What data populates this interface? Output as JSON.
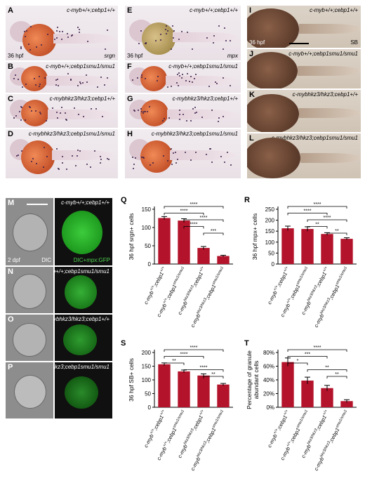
{
  "panels": {
    "A": {
      "letter": "A",
      "genotype": "c-myb+/+;cebp1+/+",
      "stage": "36 hpf",
      "stain": "srgn"
    },
    "B": {
      "letter": "B",
      "genotype": "c-myb+/+;cebp1smu1/smu1"
    },
    "C": {
      "letter": "C",
      "genotype": "c-mybhkz3/hkz3;cebp1+/+"
    },
    "D": {
      "letter": "D",
      "genotype": "c-mybhkz3/hkz3;cebp1smu1/smu1"
    },
    "E": {
      "letter": "E",
      "genotype": "c-myb+/+;cebp1+/+",
      "stage": "36 hpf",
      "stain": "mpx"
    },
    "F": {
      "letter": "F",
      "genotype": "c-myb+/+;cebp1smu1/smu1"
    },
    "G": {
      "letter": "G",
      "genotype": "c-mybhkz3/hkz3;cebp1+/+"
    },
    "H": {
      "letter": "H",
      "genotype": "c-mybhkz3/hkz3;cebp1smu1/smu1"
    },
    "I": {
      "letter": "I",
      "genotype": "c-myb+/+;cebp1+/+",
      "stage": "36 hpf",
      "stain": "SB"
    },
    "J": {
      "letter": "J",
      "genotype": "c-myb+/+;cebp1smu1/smu1"
    },
    "K": {
      "letter": "K",
      "genotype": "c-mybhkz3/hkz3;cebp1+/+"
    },
    "L": {
      "letter": "L",
      "genotype": "c-mybhkz3/hkz3;cebp1smu1/smu1"
    },
    "M": {
      "letter": "M",
      "genotype": "c-myb+/+;cebp1+/+",
      "stage": "2 dpf",
      "dic": "DIC",
      "overlay": "DIC+mpx:GFP"
    },
    "N": {
      "letter": "N",
      "genotype": "c-myb+/+;cebp1smu1/smu1"
    },
    "O": {
      "letter": "O",
      "genotype": "c-mybhkz3/hkz3;cebp1+/+"
    },
    "P": {
      "letter": "P",
      "genotype": "c-mybhkz3/hkz3;cebp1smu1/smu1"
    }
  },
  "chart_data": [
    {
      "letter": "Q",
      "type": "bar",
      "ylabel": "36 hpf srgn+ cells",
      "ylim": [
        0,
        150
      ],
      "ticks": [
        0,
        50,
        100,
        150
      ],
      "categories": [
        "c-myb+/+;cebp1+/+",
        "c-myb+/+;cebp1smu1/smu1",
        "c-mybhkz3/hkz3;cebp1+/+",
        "c-mybhkz3/hkz3;cebp1smu1/smu1"
      ],
      "values": [
        126,
        119,
        44,
        22
      ],
      "errors": [
        4,
        5,
        4,
        2
      ],
      "sig": [
        {
          "from": 0,
          "to": 3,
          "label": "****"
        },
        {
          "from": 0,
          "to": 2,
          "label": "****"
        },
        {
          "from": 1,
          "to": 3,
          "label": "****"
        },
        {
          "from": 1,
          "to": 2,
          "label": "****"
        },
        {
          "from": 2,
          "to": 3,
          "label": "***"
        }
      ]
    },
    {
      "letter": "R",
      "type": "bar",
      "ylabel": "36 hpf mpx+ cells",
      "ylim": [
        0,
        250
      ],
      "ticks": [
        0,
        50,
        100,
        150,
        200,
        250
      ],
      "categories": [
        "c-myb+/+;cebp1+/+",
        "c-myb+/+;cebp1smu1/smu1",
        "c-mybhkz3/hkz3;cebp1+/+",
        "c-mybhkz3/hkz3;cebp1smu1/smu1"
      ],
      "values": [
        163,
        160,
        137,
        115
      ],
      "errors": [
        10,
        10,
        6,
        5
      ],
      "sig": [
        {
          "from": 0,
          "to": 3,
          "label": "****"
        },
        {
          "from": 0,
          "to": 2,
          "label": "****"
        },
        {
          "from": 1,
          "to": 3,
          "label": "****"
        },
        {
          "from": 1,
          "to": 2,
          "label": "**"
        },
        {
          "from": 2,
          "to": 3,
          "label": "**"
        }
      ]
    },
    {
      "letter": "S",
      "type": "bar",
      "ylabel": "36 hpf SB+ cells",
      "ylim": [
        0,
        200
      ],
      "ticks": [
        0,
        50,
        100,
        150,
        200
      ],
      "categories": [
        "c-myb+/+;cebp1+/+",
        "c-myb+/+;cebp1smu1/smu1",
        "c-mybhkz3/hkz3;cebp1+/+",
        "c-mybhkz3/hkz3;cebp1smu1/smu1"
      ],
      "values": [
        157,
        131,
        116,
        83
      ],
      "errors": [
        5,
        5,
        6,
        4
      ],
      "sig": [
        {
          "from": 0,
          "to": 3,
          "label": "****"
        },
        {
          "from": 0,
          "to": 2,
          "label": "****"
        },
        {
          "from": 0,
          "to": 1,
          "label": "**"
        },
        {
          "from": 1,
          "to": 3,
          "label": "****"
        },
        {
          "from": 2,
          "to": 3,
          "label": "**"
        }
      ]
    },
    {
      "letter": "T",
      "type": "bar",
      "ylabel": "Percentage of granule abundant cells",
      "ylim": [
        0,
        80
      ],
      "ticks": [
        "0%",
        "20%",
        "40%",
        "60%",
        "80%"
      ],
      "categories": [
        "c-myb+/+;cebp1+/+",
        "c-myb+/+;cebp1smu1/smu1",
        "c-mybhkz3/hkz3;cebp1+/+",
        "c-mybhkz3/hkz3;cebp1smu1/smu1"
      ],
      "values": [
        66,
        39,
        28,
        9
      ],
      "errors": [
        6,
        5,
        4,
        2
      ],
      "sig": [
        {
          "from": 0,
          "to": 3,
          "label": "****"
        },
        {
          "from": 0,
          "to": 2,
          "label": "***"
        },
        {
          "from": 0,
          "to": 1,
          "label": "*"
        },
        {
          "from": 1,
          "to": 3,
          "label": "**"
        },
        {
          "from": 2,
          "to": 3,
          "label": "**"
        }
      ]
    }
  ],
  "colors": {
    "bar": "#b3132b",
    "error": "#000000"
  }
}
